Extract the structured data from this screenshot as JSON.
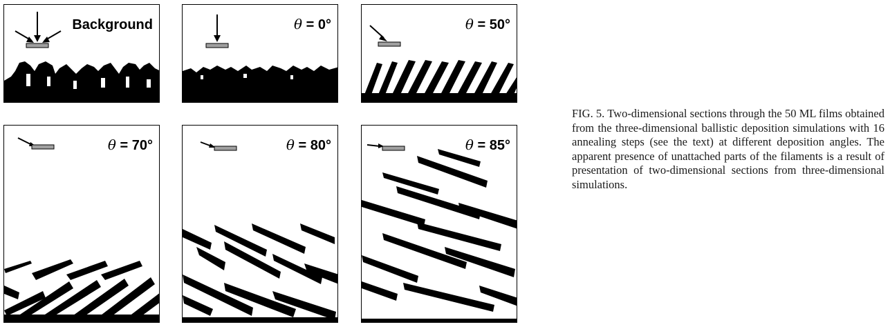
{
  "figure": {
    "panels": [
      {
        "id": "background",
        "label_symbol": "",
        "label_text": "Background",
        "arrows": "multi"
      },
      {
        "id": "theta-0",
        "label_symbol": "θ",
        "label_text": " = 0°",
        "arrows": "0"
      },
      {
        "id": "theta-50",
        "label_symbol": "θ",
        "label_text": " = 50°",
        "arrows": "50"
      },
      {
        "id": "theta-70",
        "label_symbol": "θ",
        "label_text": " = 70°",
        "arrows": "70"
      },
      {
        "id": "theta-80",
        "label_symbol": "θ",
        "label_text": " = 80°",
        "arrows": "80"
      },
      {
        "id": "theta-85",
        "label_symbol": "θ",
        "label_text": " = 85°",
        "arrows": "85"
      }
    ],
    "film_color": "#000000",
    "substrate_color": "#a0a0a0"
  },
  "caption": {
    "text": "FIG. 5. Two-dimensional sections through the 50 ML films obtained from the three-dimensional ballistic deposition simulations with 16 annealing steps (see the text) at different deposition angles. The apparent pres­ence of unattached parts of the filaments is a result of presentation of two-dimensional sections from three-dimensional simulations."
  }
}
